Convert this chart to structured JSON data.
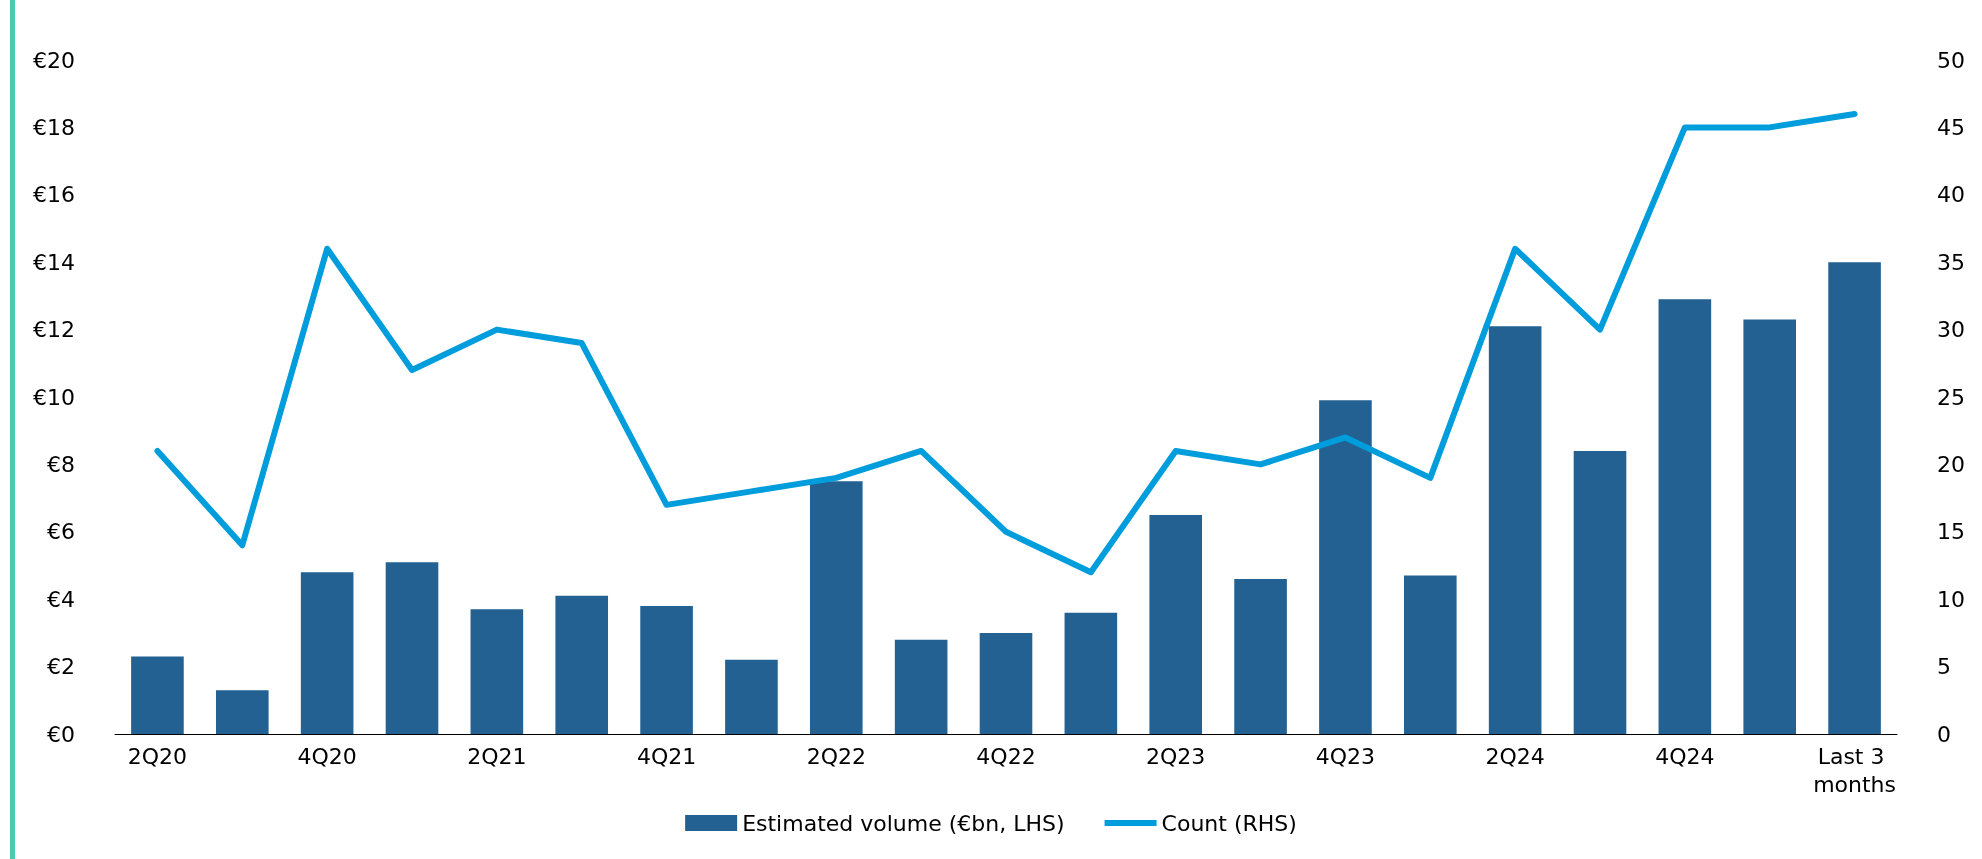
{
  "chart_data": {
    "type": "bar",
    "categories": [
      "2Q20",
      null,
      "4Q20",
      null,
      "2Q21",
      null,
      "4Q21",
      null,
      "2Q22",
      null,
      "4Q22",
      null,
      "2Q23",
      null,
      "4Q23",
      null,
      "2Q24",
      null,
      "4Q24",
      null,
      "Last 3 months"
    ],
    "series": [
      {
        "name": "Estimated volume (€bn, LHS)",
        "color": "#236192",
        "values": [
          2.3,
          1.3,
          4.8,
          5.1,
          3.7,
          4.1,
          3.8,
          2.2,
          7.5,
          2.8,
          3.0,
          3.6,
          6.5,
          4.6,
          9.9,
          4.7,
          12.1,
          8.4,
          12.9,
          12.3,
          14.0
        ]
      },
      {
        "name": "Count (RHS)",
        "type": "line",
        "axis": "y2",
        "color": "#009ddc",
        "values": [
          21,
          14,
          36,
          27,
          30,
          29,
          17,
          18,
          19,
          21,
          15,
          12,
          21,
          20,
          22,
          19,
          36,
          30,
          45,
          45,
          46
        ]
      }
    ],
    "ylim": [
      0,
      20
    ],
    "yticks": [
      {
        "value": 0,
        "label": "€0"
      },
      {
        "value": 2,
        "label": "€2"
      },
      {
        "value": 4,
        "label": "€4"
      },
      {
        "value": 6,
        "label": "€6"
      },
      {
        "value": 8,
        "label": "€8"
      },
      {
        "value": 10,
        "label": "€10"
      },
      {
        "value": 12,
        "label": "€12"
      },
      {
        "value": 14,
        "label": "€14"
      },
      {
        "value": 16,
        "label": "€16"
      },
      {
        "value": 18,
        "label": "€18"
      },
      {
        "value": 20,
        "label": "€20"
      }
    ],
    "y2lim": [
      0,
      50
    ],
    "y2ticks": [
      0,
      5,
      10,
      15,
      20,
      25,
      30,
      35,
      40,
      45,
      50
    ],
    "grid": false,
    "legend": "bottom",
    "marker": "none",
    "line_style": "solid"
  }
}
